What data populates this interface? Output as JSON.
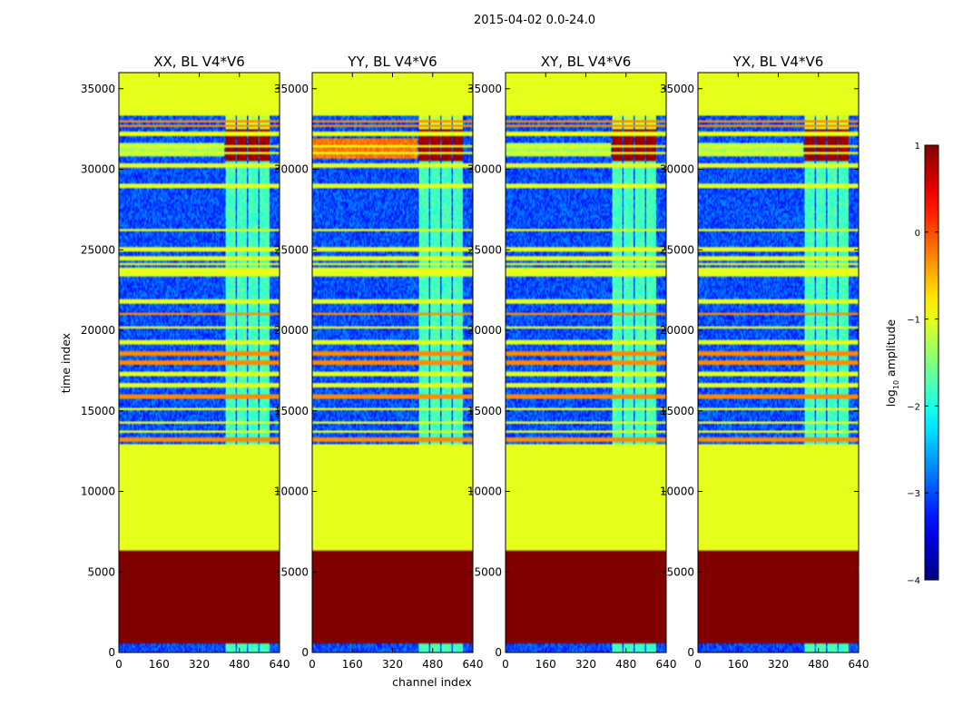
{
  "chart_data": {
    "type": "heatmap",
    "suptitle": "2015-04-02 0.0-24.0",
    "xlabel": "channel index",
    "ylabel": "time index",
    "x_ticks": [
      0,
      160,
      320,
      480,
      640
    ],
    "y_ticks": [
      0,
      5000,
      10000,
      15000,
      20000,
      25000,
      30000,
      35000
    ],
    "xlim": [
      0,
      640
    ],
    "ylim": [
      0,
      36000
    ],
    "colorbar": {
      "label": "log$_{10}$ amplitude",
      "label_main": "log",
      "label_sub": "10",
      "label_rest": " amplitude",
      "range": [
        -4,
        1
      ],
      "ticks": [
        1,
        0,
        -1,
        -2,
        -3,
        -4
      ],
      "tick_labels": [
        "1",
        "0",
        "−1",
        "−2",
        "−3",
        "−4"
      ],
      "colormap": "jet"
    },
    "panels": [
      {
        "title": "XX, BL V4*V6",
        "variant": 0
      },
      {
        "title": "YY, BL V4*V6",
        "variant": 1
      },
      {
        "title": "XY, BL V4*V6",
        "variant": 2
      },
      {
        "title": "YX, BL V4*V6",
        "variant": 3
      }
    ],
    "flagged_constant_blocks": [
      {
        "time_range": [
          600,
          6300
        ],
        "log_amplitude": 1
      },
      {
        "time_range": [
          6300,
          13000
        ],
        "log_amplitude": -1
      },
      {
        "time_range": [
          23300,
          23900
        ],
        "log_amplitude": -1
      },
      {
        "time_range": [
          33300,
          36000
        ],
        "log_amplitude": -1
      }
    ],
    "rfi_channel_range": [
      420,
      600
    ],
    "peak_time_range": [
      30500,
      32500
    ],
    "peak_log_amplitude": 1
  }
}
